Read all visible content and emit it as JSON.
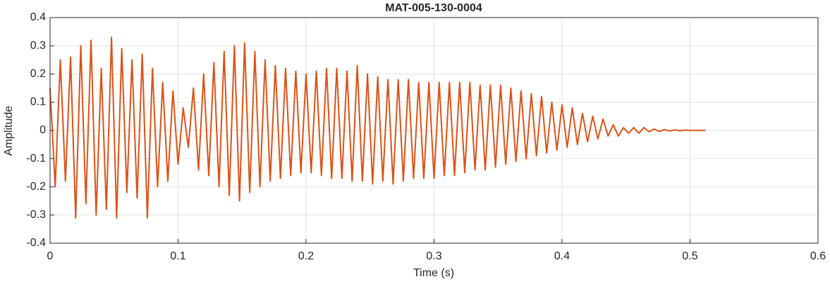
{
  "chart_data": {
    "type": "line",
    "title": "MAT-005-130-0004",
    "xlabel": "Time (s)",
    "ylabel": "Amplitude",
    "x": [
      0,
      0.004,
      0.008,
      0.012,
      0.016,
      0.02,
      0.024,
      0.028,
      0.032,
      0.036,
      0.04,
      0.044,
      0.048,
      0.052,
      0.056,
      0.06,
      0.064,
      0.068,
      0.072,
      0.076,
      0.08,
      0.084,
      0.088,
      0.092,
      0.096,
      0.1,
      0.104,
      0.108,
      0.112,
      0.116,
      0.12,
      0.124,
      0.128,
      0.132,
      0.136,
      0.14,
      0.144,
      0.148,
      0.152,
      0.156,
      0.16,
      0.164,
      0.168,
      0.172,
      0.176,
      0.18,
      0.184,
      0.188,
      0.192,
      0.196,
      0.2,
      0.204,
      0.208,
      0.212,
      0.216,
      0.22,
      0.224,
      0.228,
      0.232,
      0.236,
      0.24,
      0.244,
      0.248,
      0.252,
      0.256,
      0.26,
      0.264,
      0.268,
      0.272,
      0.276,
      0.28,
      0.284,
      0.288,
      0.292,
      0.296,
      0.3,
      0.304,
      0.308,
      0.312,
      0.316,
      0.32,
      0.324,
      0.328,
      0.332,
      0.336,
      0.34,
      0.344,
      0.348,
      0.352,
      0.356,
      0.36,
      0.364,
      0.368,
      0.372,
      0.376,
      0.38,
      0.384,
      0.388,
      0.392,
      0.396,
      0.4,
      0.404,
      0.408,
      0.412,
      0.416,
      0.42,
      0.424,
      0.428,
      0.432,
      0.436,
      0.44,
      0.444,
      0.448,
      0.452,
      0.456,
      0.46,
      0.464,
      0.468,
      0.472,
      0.476,
      0.48,
      0.484,
      0.488,
      0.492,
      0.496,
      0.5,
      0.504,
      0.508,
      0.512
    ],
    "values": [
      0.15,
      -0.2,
      0.25,
      -0.18,
      0.26,
      -0.31,
      0.3,
      -0.26,
      0.32,
      -0.3,
      0.22,
      -0.28,
      0.33,
      -0.31,
      0.29,
      -0.22,
      0.25,
      -0.24,
      0.27,
      -0.31,
      0.22,
      -0.2,
      0.17,
      -0.18,
      0.14,
      -0.12,
      0.08,
      -0.06,
      0.15,
      -0.14,
      0.2,
      -0.16,
      0.24,
      -0.2,
      0.28,
      -0.23,
      0.3,
      -0.25,
      0.31,
      -0.22,
      0.28,
      -0.2,
      0.25,
      -0.18,
      0.23,
      -0.17,
      0.22,
      -0.16,
      0.21,
      -0.15,
      0.2,
      -0.15,
      0.21,
      -0.16,
      0.22,
      -0.17,
      0.22,
      -0.17,
      0.21,
      -0.18,
      0.23,
      -0.18,
      0.2,
      -0.19,
      0.19,
      -0.18,
      0.18,
      -0.19,
      0.18,
      -0.18,
      0.18,
      -0.17,
      0.17,
      -0.17,
      0.17,
      -0.17,
      0.17,
      -0.16,
      0.17,
      -0.16,
      0.17,
      -0.15,
      0.17,
      -0.14,
      0.16,
      -0.14,
      0.16,
      -0.13,
      0.16,
      -0.12,
      0.15,
      -0.11,
      0.14,
      -0.1,
      0.13,
      -0.09,
      0.12,
      -0.08,
      0.1,
      -0.07,
      0.09,
      -0.06,
      0.08,
      -0.05,
      0.06,
      -0.04,
      0.05,
      -0.03,
      0.04,
      -0.02,
      0.02,
      -0.02,
      0.01,
      -0.01,
      0.01,
      -0.01,
      0.01,
      -0.005,
      0.005,
      -0.004,
      0.003,
      -0.002,
      0.002,
      -0.001,
      0.001,
      0,
      0,
      0,
      0
    ],
    "color": "#d95319",
    "xlim": [
      0,
      0.6
    ],
    "ylim": [
      -0.4,
      0.4
    ],
    "xticks": [
      0,
      0.1,
      0.2,
      0.3,
      0.4,
      0.5,
      0.6
    ],
    "yticks": [
      -0.4,
      -0.3,
      -0.2,
      -0.1,
      0,
      0.1,
      0.2,
      0.3,
      0.4
    ],
    "grid": true
  }
}
